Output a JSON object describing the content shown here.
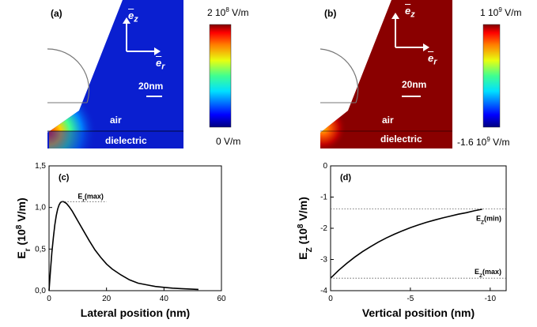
{
  "colors": {
    "map_a_background": "#0a1fd0",
    "map_b_background": "#8a0000",
    "curve": "#000000",
    "dotted_ref": "#555555"
  },
  "panel_a": {
    "label": "(a)",
    "ez_label": "e",
    "ez_sub": "z",
    "er_label": "e",
    "er_sub": "r",
    "scale_label": "20nm",
    "air_label": "air",
    "dielectric_label": "dielectric",
    "colorbar_max": "2 10",
    "colorbar_max_exp": "8",
    "colorbar_max_unit": " V/m",
    "colorbar_min": "0 V/m"
  },
  "panel_b": {
    "label": "(b)",
    "ez_label": "e",
    "ez_sub": "z",
    "er_label": "e",
    "er_sub": "r",
    "scale_label": "20nm",
    "air_label": "air",
    "dielectric_label": "dielectric",
    "colorbar_max": "1 10",
    "colorbar_max_exp": "9",
    "colorbar_max_unit": " V/m",
    "colorbar_min": "-1.6 10",
    "colorbar_min_exp": "9",
    "colorbar_min_unit": " V/m"
  },
  "chart_data": [
    {
      "panel": "(c)",
      "type": "line",
      "xlabel": "Lateral position (nm)",
      "ylabel_main": "E",
      "ylabel_sub": "r",
      "ylabel_unit": " (10",
      "ylabel_exp": "8",
      "ylabel_tail": " V/m)",
      "xlim": [
        0,
        60
      ],
      "ylim": [
        0.0,
        1.5
      ],
      "xticks": [
        0,
        20,
        40,
        60
      ],
      "xtick_labels": [
        "0",
        "20",
        "40",
        "60"
      ],
      "yticks": [
        0.0,
        0.5,
        1.0,
        1.5
      ],
      "ytick_labels": [
        "0,0",
        "0,5",
        "1,0",
        "1,5"
      ],
      "grid": false,
      "annotation": {
        "text": "E",
        "sub": "r",
        "tail": "(max)",
        "y": 1.07
      },
      "series": [
        {
          "x": [
            0,
            0.5,
            1,
            1.5,
            2,
            2.5,
            3,
            3.5,
            4,
            4.5,
            5,
            5.5,
            6,
            7,
            8,
            9,
            10,
            12,
            14,
            16,
            18,
            20,
            22,
            25,
            28,
            31,
            34,
            37,
            40,
            43,
            46,
            49,
            52
          ],
          "y": [
            0.0,
            0.24,
            0.46,
            0.64,
            0.79,
            0.9,
            0.98,
            1.03,
            1.06,
            1.07,
            1.07,
            1.06,
            1.05,
            1.01,
            0.96,
            0.9,
            0.84,
            0.72,
            0.6,
            0.49,
            0.4,
            0.32,
            0.26,
            0.19,
            0.13,
            0.09,
            0.07,
            0.05,
            0.04,
            0.03,
            0.025,
            0.02,
            0.015
          ]
        }
      ]
    },
    {
      "panel": "(d)",
      "type": "line",
      "xlabel": "Vertical position (nm)",
      "ylabel_main": "E",
      "ylabel_sub": "Z",
      "ylabel_unit": " (10",
      "ylabel_exp": "8",
      "ylabel_tail": " V/m)",
      "xlim": [
        0,
        -11
      ],
      "ylim": [
        -4,
        0
      ],
      "xticks": [
        0,
        -5,
        -10
      ],
      "xtick_labels": [
        "0",
        "-5",
        "-10"
      ],
      "yticks": [
        0,
        -1,
        -2,
        -3,
        -4
      ],
      "ytick_labels": [
        "0",
        "-1",
        "-2",
        "-3",
        "-4"
      ],
      "grid": false,
      "annotations": [
        {
          "text": "E",
          "sub": "Z",
          "tail": "(min)",
          "y": -1.38
        },
        {
          "text": "E",
          "sub": "Z",
          "tail": "(max)",
          "y": -3.6
        }
      ],
      "series": [
        {
          "x": [
            0,
            -0.5,
            -1,
            -1.5,
            -2,
            -2.5,
            -3,
            -3.5,
            -4,
            -4.5,
            -5,
            -5.5,
            -6,
            -6.5,
            -7,
            -7.5,
            -8,
            -8.5,
            -9,
            -9.5
          ],
          "y": [
            -3.6,
            -3.35,
            -3.13,
            -2.93,
            -2.75,
            -2.59,
            -2.44,
            -2.31,
            -2.19,
            -2.08,
            -1.98,
            -1.89,
            -1.81,
            -1.74,
            -1.67,
            -1.61,
            -1.55,
            -1.5,
            -1.44,
            -1.39
          ]
        }
      ]
    }
  ]
}
